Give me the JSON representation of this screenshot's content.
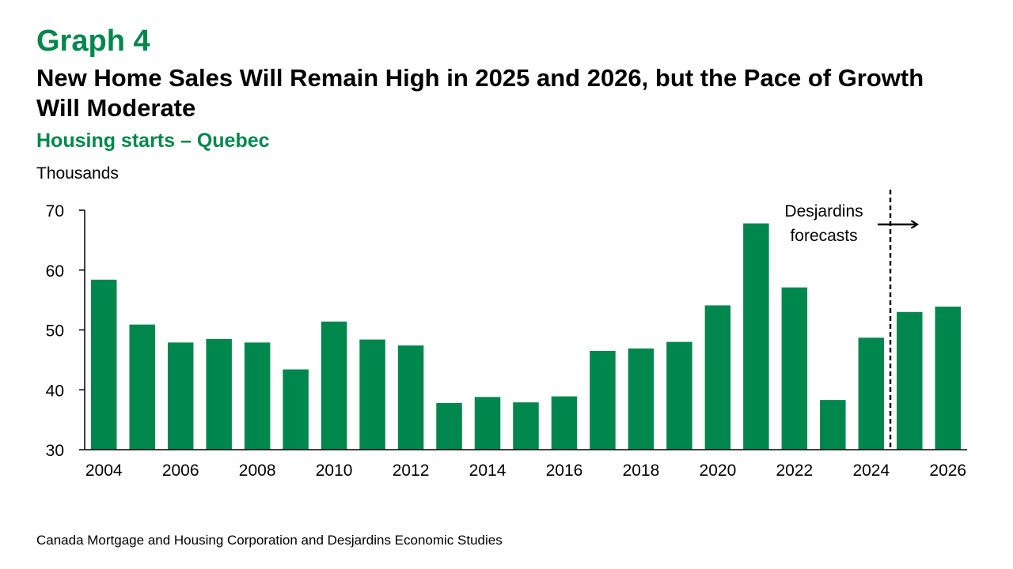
{
  "header": {
    "graph_label": "Graph 4",
    "title": "New Home Sales Will Remain High in 2025 and 2026, but the Pace of Growth Will Moderate",
    "subtitle": "Housing starts – Quebec",
    "unit_label": "Thousands"
  },
  "source": "Canada Mortgage and Housing Corporation and Desjardins Economic Studies",
  "colors": {
    "accent": "#00874D",
    "bar": "#00874D",
    "text": "#000000"
  },
  "chart_data": {
    "type": "bar",
    "title": "New Home Sales Will Remain High in 2025 and 2026, but the Pace of Growth Will Moderate",
    "subtitle": "Housing starts – Quebec",
    "ylabel": "Thousands",
    "xlabel": "",
    "categories": [
      "2004",
      "2005",
      "2006",
      "2007",
      "2008",
      "2009",
      "2010",
      "2011",
      "2012",
      "2013",
      "2014",
      "2015",
      "2016",
      "2017",
      "2018",
      "2019",
      "2020",
      "2021",
      "2022",
      "2023",
      "2024",
      "2025",
      "2026"
    ],
    "x_tick_labels": [
      "2004",
      "2006",
      "2008",
      "2010",
      "2012",
      "2014",
      "2016",
      "2018",
      "2020",
      "2022",
      "2024",
      "2026"
    ],
    "values": [
      58.4,
      50.9,
      47.9,
      48.5,
      47.9,
      43.4,
      51.4,
      48.4,
      47.4,
      37.8,
      38.8,
      37.9,
      38.9,
      46.5,
      46.9,
      48.0,
      54.1,
      67.8,
      57.1,
      38.3,
      48.7,
      53.0,
      53.9
    ],
    "ylim": [
      30,
      70
    ],
    "y_ticks": [
      30,
      40,
      50,
      60,
      70
    ],
    "grid": false,
    "forecast": {
      "start_after": "2024",
      "label_line1": "Desjardins",
      "label_line2": "forecasts"
    }
  }
}
